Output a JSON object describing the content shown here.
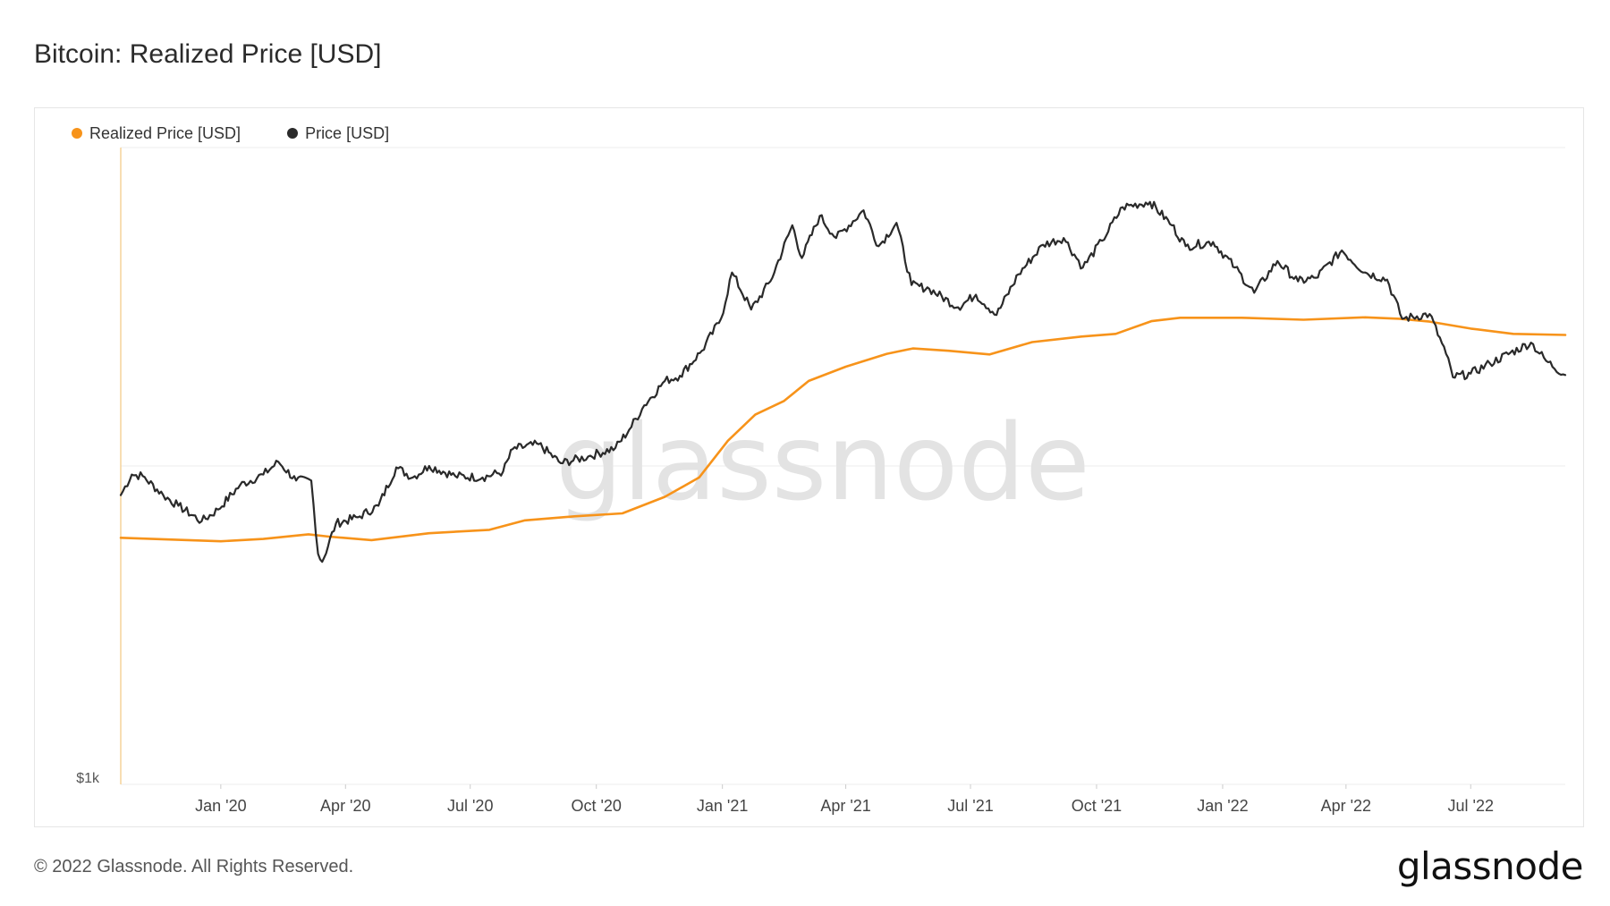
{
  "page": {
    "title": "Bitcoin: Realized Price [USD]",
    "footer_copyright": "© 2022 Glassnode. All Rights Reserved.",
    "footer_logo": "glassnode",
    "watermark": "glassnode"
  },
  "chart_data": {
    "type": "line",
    "title": "Bitcoin: Realized Price [USD]",
    "yscale": "log",
    "ylim": [
      1000,
      100000
    ],
    "y_tick_labels": [
      "$1k"
    ],
    "x_tick_labels": [
      "Jan '20",
      "Apr '20",
      "Jul '20",
      "Oct '20",
      "Jan '21",
      "Apr '21",
      "Jul '21",
      "Oct '21",
      "Jan '22",
      "Apr '22",
      "Jul '22"
    ],
    "x_tick_dates": [
      "2020-01-01",
      "2020-04-01",
      "2020-07-01",
      "2020-10-01",
      "2021-01-01",
      "2021-04-01",
      "2021-07-01",
      "2021-10-01",
      "2022-01-01",
      "2022-04-01",
      "2022-07-01"
    ],
    "xlim": [
      "2019-10-20",
      "2022-09-08"
    ],
    "grid": true,
    "legend_position": "top-left",
    "colors": {
      "realized": "#f7931a",
      "price": "#2a2a2a"
    },
    "series": [
      {
        "name": "Realized Price [USD]",
        "color": "#f7931a",
        "points": [
          [
            "2019-10-20",
            5950
          ],
          [
            "2019-12-01",
            5860
          ],
          [
            "2020-01-01",
            5800
          ],
          [
            "2020-02-01",
            5900
          ],
          [
            "2020-03-05",
            6100
          ],
          [
            "2020-03-20",
            6000
          ],
          [
            "2020-04-20",
            5850
          ],
          [
            "2020-06-01",
            6150
          ],
          [
            "2020-07-15",
            6300
          ],
          [
            "2020-08-10",
            6750
          ],
          [
            "2020-09-15",
            6950
          ],
          [
            "2020-10-20",
            7100
          ],
          [
            "2020-11-20",
            8000
          ],
          [
            "2020-12-15",
            9200
          ],
          [
            "2021-01-05",
            12000
          ],
          [
            "2021-01-25",
            14500
          ],
          [
            "2021-02-15",
            16000
          ],
          [
            "2021-03-05",
            18500
          ],
          [
            "2021-04-01",
            20500
          ],
          [
            "2021-05-01",
            22500
          ],
          [
            "2021-05-20",
            23400
          ],
          [
            "2021-06-15",
            23000
          ],
          [
            "2021-07-15",
            22400
          ],
          [
            "2021-08-15",
            24500
          ],
          [
            "2021-09-20",
            25500
          ],
          [
            "2021-10-15",
            26000
          ],
          [
            "2021-11-10",
            28500
          ],
          [
            "2021-12-01",
            29200
          ],
          [
            "2022-01-15",
            29200
          ],
          [
            "2022-03-01",
            28800
          ],
          [
            "2022-04-15",
            29300
          ],
          [
            "2022-05-10",
            29000
          ],
          [
            "2022-06-01",
            28400
          ],
          [
            "2022-07-01",
            27000
          ],
          [
            "2022-08-01",
            26000
          ],
          [
            "2022-09-08",
            25800
          ]
        ]
      },
      {
        "name": "Price [USD]",
        "color": "#2a2a2a",
        "points": [
          [
            "2019-10-20",
            8100
          ],
          [
            "2019-10-28",
            9400
          ],
          [
            "2019-11-05",
            9300
          ],
          [
            "2019-11-20",
            8100
          ],
          [
            "2019-12-01",
            7500
          ],
          [
            "2019-12-18",
            6700
          ],
          [
            "2019-12-30",
            7300
          ],
          [
            "2020-01-15",
            8700
          ],
          [
            "2020-02-01",
            9400
          ],
          [
            "2020-02-12",
            10300
          ],
          [
            "2020-02-25",
            9000
          ],
          [
            "2020-03-07",
            9000
          ],
          [
            "2020-03-12",
            5300
          ],
          [
            "2020-03-15",
            5000
          ],
          [
            "2020-03-25",
            6600
          ],
          [
            "2020-04-10",
            6900
          ],
          [
            "2020-04-25",
            7500
          ],
          [
            "2020-05-08",
            9900
          ],
          [
            "2020-05-20",
            9200
          ],
          [
            "2020-06-01",
            10000
          ],
          [
            "2020-06-20",
            9300
          ],
          [
            "2020-07-10",
            9200
          ],
          [
            "2020-07-25",
            9600
          ],
          [
            "2020-08-01",
            11300
          ],
          [
            "2020-08-20",
            11700
          ],
          [
            "2020-09-05",
            10200
          ],
          [
            "2020-09-25",
            10700
          ],
          [
            "2020-10-15",
            11400
          ],
          [
            "2020-10-25",
            13000
          ],
          [
            "2020-11-05",
            15500
          ],
          [
            "2020-11-20",
            18500
          ],
          [
            "2020-12-01",
            19200
          ],
          [
            "2020-12-17",
            23000
          ],
          [
            "2020-12-31",
            29000
          ],
          [
            "2021-01-08",
            40500
          ],
          [
            "2021-01-22",
            31000
          ],
          [
            "2021-02-05",
            38000
          ],
          [
            "2021-02-21",
            57000
          ],
          [
            "2021-02-28",
            45000
          ],
          [
            "2021-03-13",
            61000
          ],
          [
            "2021-03-25",
            52000
          ],
          [
            "2021-04-14",
            63500
          ],
          [
            "2021-04-25",
            49000
          ],
          [
            "2021-05-08",
            58000
          ],
          [
            "2021-05-19",
            37000
          ],
          [
            "2021-06-01",
            36000
          ],
          [
            "2021-06-22",
            31500
          ],
          [
            "2021-07-05",
            34500
          ],
          [
            "2021-07-20",
            29800
          ],
          [
            "2021-08-05",
            40000
          ],
          [
            "2021-08-23",
            49500
          ],
          [
            "2021-09-07",
            52000
          ],
          [
            "2021-09-21",
            42000
          ],
          [
            "2021-10-05",
            51000
          ],
          [
            "2021-10-20",
            65000
          ],
          [
            "2021-11-09",
            67500
          ],
          [
            "2021-11-25",
            57000
          ],
          [
            "2021-12-05",
            49000
          ],
          [
            "2021-12-25",
            50500
          ],
          [
            "2022-01-10",
            42000
          ],
          [
            "2022-01-24",
            35000
          ],
          [
            "2022-02-10",
            44000
          ],
          [
            "2022-02-25",
            38000
          ],
          [
            "2022-03-10",
            39000
          ],
          [
            "2022-03-29",
            47500
          ],
          [
            "2022-04-15",
            40500
          ],
          [
            "2022-05-01",
            38500
          ],
          [
            "2022-05-12",
            29000
          ],
          [
            "2022-06-01",
            30000
          ],
          [
            "2022-06-13",
            22500
          ],
          [
            "2022-06-18",
            19000
          ],
          [
            "2022-07-01",
            19500
          ],
          [
            "2022-07-15",
            21000
          ],
          [
            "2022-08-14",
            24400
          ],
          [
            "2022-08-25",
            21400
          ],
          [
            "2022-09-08",
            19300
          ]
        ]
      }
    ]
  }
}
